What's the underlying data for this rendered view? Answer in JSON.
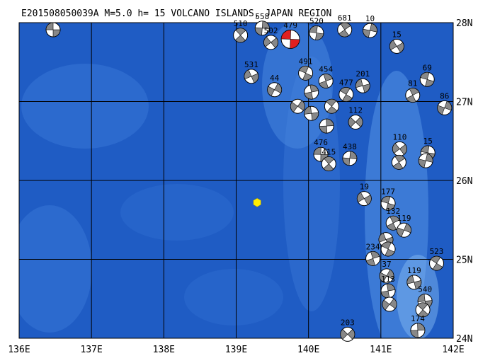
{
  "title": "E201508050039A M=5.0 h= 15 VOLCANO ISLANDS, JAPAN REGION",
  "lon_range": [
    136,
    142
  ],
  "lat_range": [
    24,
    28
  ],
  "lon_ticks": [
    {
      "value": 136,
      "label": "136E"
    },
    {
      "value": 137,
      "label": "137E"
    },
    {
      "value": 138,
      "label": "138E"
    },
    {
      "value": 139,
      "label": "139E"
    },
    {
      "value": 140,
      "label": "140E"
    },
    {
      "value": 141,
      "label": "141E"
    },
    {
      "value": 142,
      "label": "142E"
    }
  ],
  "lat_ticks": [
    {
      "value": 24,
      "label": "24N"
    },
    {
      "value": 25,
      "label": "25N"
    },
    {
      "value": 26,
      "label": "26N"
    },
    {
      "value": 27,
      "label": "27N"
    },
    {
      "value": 28,
      "label": "28N"
    }
  ],
  "epicenter": {
    "lon": 139.29,
    "lat": 25.72,
    "color": "#ffee00"
  },
  "mechanism_color": "#888888",
  "events": [
    {
      "lon": 136.47,
      "lat": 27.91
    },
    {
      "lon": 139.06,
      "lat": 27.84,
      "depth": "510"
    },
    {
      "lon": 139.36,
      "lat": 27.93,
      "depth": "558"
    },
    {
      "lon": 139.48,
      "lat": 27.75,
      "depth": "502"
    },
    {
      "lon": 140.11,
      "lat": 27.87,
      "depth": "520"
    },
    {
      "lon": 140.5,
      "lat": 27.91,
      "depth": "681"
    },
    {
      "lon": 140.85,
      "lat": 27.9,
      "depth": "10"
    },
    {
      "lon": 141.22,
      "lat": 27.7,
      "depth": "15"
    },
    {
      "lon": 141.64,
      "lat": 27.28,
      "depth": "69"
    },
    {
      "lon": 141.44,
      "lat": 27.08,
      "depth": "81"
    },
    {
      "lon": 141.88,
      "lat": 26.92,
      "depth": "86"
    },
    {
      "lon": 139.21,
      "lat": 27.32,
      "depth": "531"
    },
    {
      "lon": 139.96,
      "lat": 27.36,
      "depth": "491"
    },
    {
      "lon": 140.24,
      "lat": 27.26,
      "depth": "454"
    },
    {
      "lon": 139.53,
      "lat": 27.15,
      "depth": "44"
    },
    {
      "lon": 140.75,
      "lat": 27.2,
      "depth": "201"
    },
    {
      "lon": 140.52,
      "lat": 27.09,
      "depth": "477"
    },
    {
      "lon": 140.04,
      "lat": 27.12
    },
    {
      "lon": 139.85,
      "lat": 26.94
    },
    {
      "lon": 140.04,
      "lat": 26.85
    },
    {
      "lon": 140.32,
      "lat": 26.94
    },
    {
      "lon": 140.25,
      "lat": 26.69
    },
    {
      "lon": 140.65,
      "lat": 26.74,
      "depth": "112"
    },
    {
      "lon": 140.17,
      "lat": 26.33,
      "depth": "476"
    },
    {
      "lon": 140.28,
      "lat": 26.21,
      "depth": "415"
    },
    {
      "lon": 140.57,
      "lat": 26.28,
      "depth": "438"
    },
    {
      "lon": 141.26,
      "lat": 26.4,
      "depth": "110"
    },
    {
      "lon": 141.65,
      "lat": 26.35,
      "depth": "15"
    },
    {
      "lon": 141.25,
      "lat": 26.23
    },
    {
      "lon": 141.62,
      "lat": 26.25
    },
    {
      "lon": 140.77,
      "lat": 25.77,
      "depth": "19"
    },
    {
      "lon": 141.1,
      "lat": 25.71,
      "depth": "177"
    },
    {
      "lon": 141.17,
      "lat": 25.46,
      "depth": "132"
    },
    {
      "lon": 141.32,
      "lat": 25.37,
      "depth": "119"
    },
    {
      "lon": 141.07,
      "lat": 25.25
    },
    {
      "lon": 141.1,
      "lat": 25.13
    },
    {
      "lon": 140.89,
      "lat": 25.01,
      "depth": "234"
    },
    {
      "lon": 141.08,
      "lat": 24.79,
      "depth": "37"
    },
    {
      "lon": 141.46,
      "lat": 24.71,
      "depth": "119"
    },
    {
      "lon": 141.77,
      "lat": 24.95,
      "depth": "523"
    },
    {
      "lon": 141.1,
      "lat": 24.6,
      "depth": "113"
    },
    {
      "lon": 141.12,
      "lat": 24.43
    },
    {
      "lon": 141.61,
      "lat": 24.47,
      "depth": "540"
    },
    {
      "lon": 141.58,
      "lat": 24.36
    },
    {
      "lon": 141.51,
      "lat": 24.1,
      "depth": "174"
    },
    {
      "lon": 140.54,
      "lat": 24.05,
      "depth": "203"
    },
    {
      "lon": 139.75,
      "lat": 27.79,
      "depth": "479",
      "color": "#e02020"
    }
  ]
}
